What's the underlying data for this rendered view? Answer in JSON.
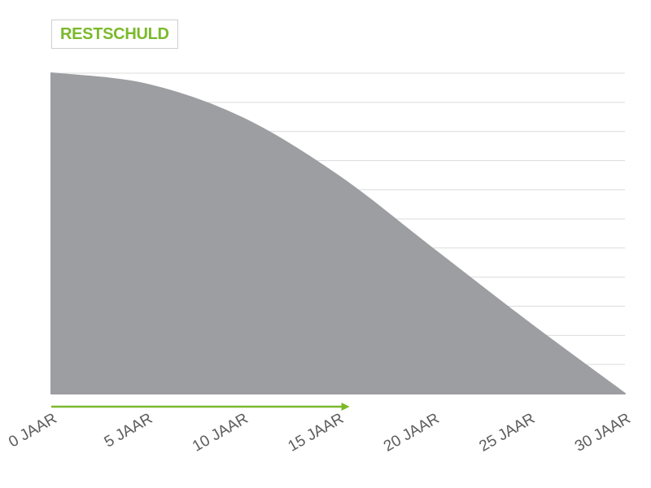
{
  "chart_data": {
    "type": "area",
    "title": "RESTSCHULD",
    "x": [
      0,
      5,
      10,
      15,
      20,
      25,
      30
    ],
    "categories": [
      "0 JAAR",
      "5 JAAR",
      "10 JAAR",
      "15 JAAR",
      "20 JAAR",
      "25 JAAR",
      "30 JAAR"
    ],
    "series": [
      {
        "values": [
          100,
          96.5,
          86,
          68,
          45,
          22,
          0
        ]
      }
    ],
    "xlim": [
      0,
      30
    ],
    "ylim": [
      0,
      100
    ],
    "grid": true,
    "gridlines": 11,
    "progress_arrow_end": 15.6
  },
  "colors": {
    "area": "#9d9ea2",
    "grid": "#dcdcdc",
    "accent": "#7bb92b",
    "tick_text": "#5c5c5c"
  }
}
